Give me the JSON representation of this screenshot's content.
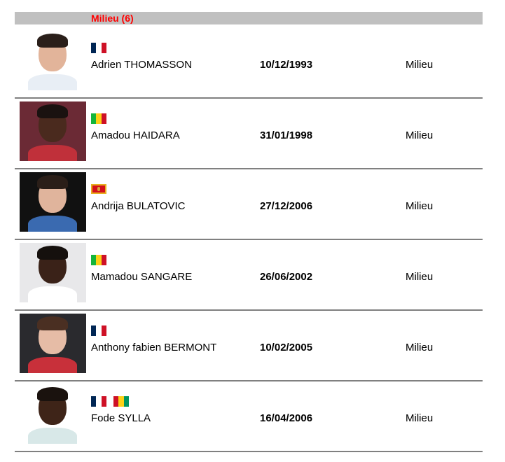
{
  "section": {
    "title": "Milieu (6)"
  },
  "colors": {
    "header_bg": "#c0c0c0",
    "header_text": "#ff0000",
    "divider": "#808080"
  },
  "players": [
    {
      "name": "Adrien THOMASSON",
      "dob": "10/12/1993",
      "position": "Milieu",
      "flags": [
        "france"
      ],
      "photo_bg": "#ffffff",
      "skin": "#e2b49a",
      "hair": "#2a1f1a",
      "shirt": "#e8eef5"
    },
    {
      "name": "Amadou HAIDARA",
      "dob": "31/01/1998",
      "position": "Milieu",
      "flags": [
        "mali"
      ],
      "photo_bg": "#6b2a35",
      "skin": "#4a2a1e",
      "hair": "#1a1210",
      "shirt": "#c0303a"
    },
    {
      "name": "Andrija BULATOVIC",
      "dob": "27/12/2006",
      "position": "Milieu",
      "flags": [
        "montenegro"
      ],
      "photo_bg": "#111111",
      "skin": "#e0b49c",
      "hair": "#2a1e18",
      "shirt": "#3a6ab0"
    },
    {
      "name": "Mamadou SANGARE",
      "dob": "26/06/2002",
      "position": "Milieu",
      "flags": [
        "mali"
      ],
      "photo_bg": "#e8e8ea",
      "skin": "#3a2218",
      "hair": "#15100d",
      "shirt": "#ffffff"
    },
    {
      "name": "Anthony fabien BERMONT",
      "dob": "10/02/2005",
      "position": "Milieu",
      "flags": [
        "france"
      ],
      "photo_bg": "#2a2a2e",
      "skin": "#e6bca6",
      "hair": "#4a2f22",
      "shirt": "#c8303a"
    },
    {
      "name": "Fode SYLLA",
      "dob": "16/04/2006",
      "position": "Milieu",
      "flags": [
        "france",
        "guinea"
      ],
      "photo_bg": "#ffffff",
      "skin": "#3e2418",
      "hair": "#1a120e",
      "shirt": "#d8e8e8"
    }
  ]
}
